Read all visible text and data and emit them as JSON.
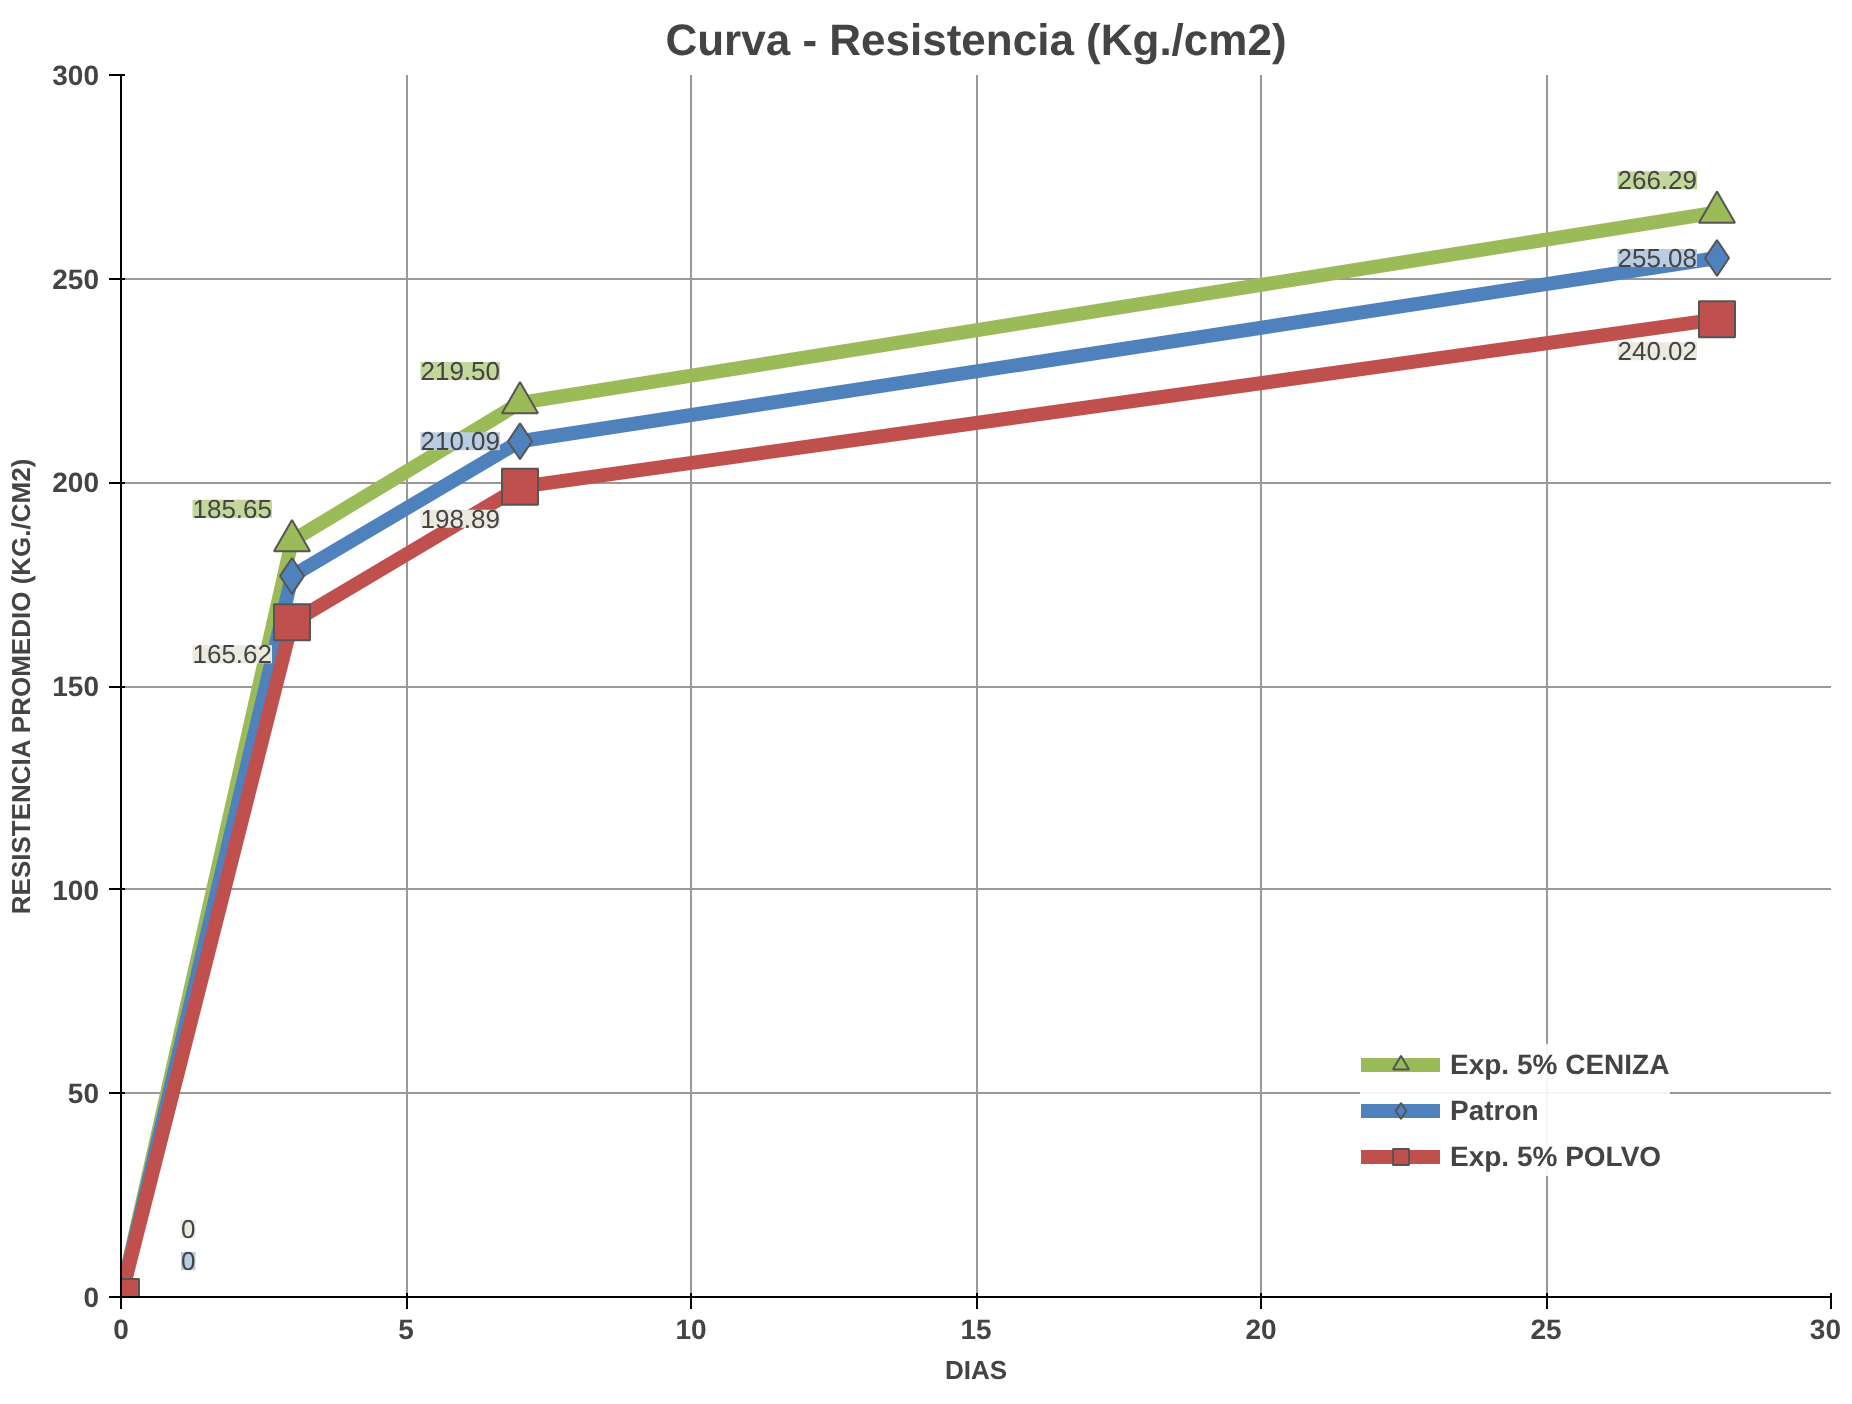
{
  "chart_data": {
    "type": "line",
    "title": "Curva - Resistencia (Kg./cm2)",
    "xlabel": "DIAS",
    "ylabel": "RESISTENCIA PROMEDIO (KG./CM2)",
    "x": [
      0,
      3,
      7,
      28
    ],
    "series": [
      {
        "name": "Exp. 5% CENIZA",
        "color": "#9bbb59",
        "marker": "triangle",
        "values": [
          0,
          185.65,
          219.5,
          266.29
        ],
        "value_labels": [
          null,
          "185.65",
          "219.50",
          "266.29"
        ]
      },
      {
        "name": "Patron",
        "color": "#4f81bd",
        "marker": "diamond",
        "values": [
          0,
          177,
          210.09,
          255.08
        ],
        "value_labels": [
          "0",
          null,
          "210.09",
          "255.08"
        ]
      },
      {
        "name": "Exp. 5% POLVO",
        "color": "#c0504d",
        "marker": "square",
        "values": [
          0,
          165.62,
          198.89,
          240.02
        ],
        "value_labels": [
          "0",
          "165.62",
          "198.89",
          "240.02"
        ]
      }
    ],
    "xlim": [
      0,
      30
    ],
    "xticks": [
      0,
      5,
      10,
      15,
      20,
      25,
      30
    ],
    "ylim": [
      0,
      300
    ],
    "yticks": [
      0,
      50,
      100,
      150,
      200,
      250,
      300
    ],
    "grid": true,
    "legend": "right",
    "line_style": "solid"
  }
}
